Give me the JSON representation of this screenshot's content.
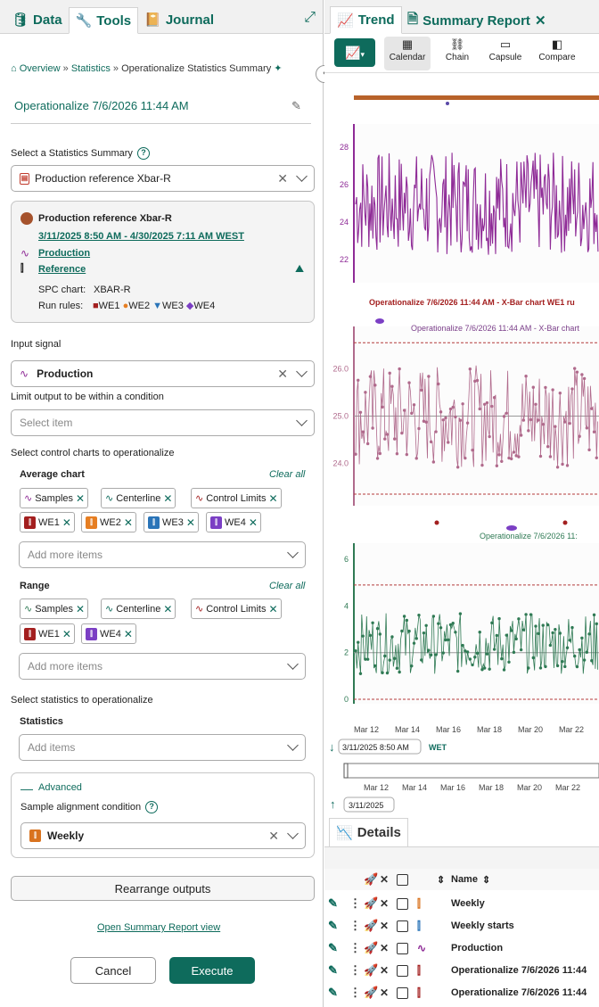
{
  "left_tabs": {
    "data": "Data",
    "tools": "Tools",
    "journal": "Journal"
  },
  "right_tabs": {
    "trend": "Trend",
    "summary": "Summary Report"
  },
  "breadcrumb": {
    "overview": "Overview",
    "sep": "»",
    "statistics": "Statistics",
    "current": "Operationalize Statistics Summary"
  },
  "page_title": "Operationalize 7/6/2026 11:44 AM",
  "summary_section": {
    "label": "Select a Statistics Summary",
    "value": "Production reference Xbar-R"
  },
  "card": {
    "title": "Production reference Xbar-R",
    "range": "3/11/2025 8:50 AM - 4/30/2025 7:11 AM WEST",
    "signal": "Production",
    "condition": "Reference",
    "spc_label": "SPC chart:",
    "spc_value": "XBAR-R",
    "rules_label": "Run rules:",
    "rules": [
      {
        "name": "WE1",
        "color": "#a31f1f",
        "glyph": "■"
      },
      {
        "name": "WE2",
        "color": "#e67e22",
        "glyph": "●"
      },
      {
        "name": "WE3",
        "color": "#2a74b8",
        "glyph": "▼"
      },
      {
        "name": "WE4",
        "color": "#7b3fc4",
        "glyph": "◆"
      }
    ]
  },
  "input_signal": {
    "label": "Input signal",
    "value": "Production"
  },
  "limit_output": {
    "label": "Limit output to be within a condition",
    "placeholder": "Select item"
  },
  "control_charts": {
    "label": "Select control charts to operationalize",
    "average_label": "Average chart",
    "range_label": "Range",
    "clear_all": "Clear all",
    "average_chips": [
      "Samples",
      "Centerline",
      "Control Limits",
      "WE1",
      "WE2",
      "WE3",
      "WE4"
    ],
    "range_chips": [
      "Samples",
      "Centerline",
      "Control Limits",
      "WE1",
      "WE4"
    ],
    "add_more": "Add more items"
  },
  "statistics": {
    "label": "Select statistics to operationalize",
    "sub_label": "Statistics",
    "placeholder": "Add items"
  },
  "advanced": {
    "label": "Advanced",
    "alignment_label": "Sample alignment condition",
    "alignment_value": "Weekly"
  },
  "buttons": {
    "rearrange": "Rearrange outputs",
    "open_report": "Open Summary Report view",
    "cancel": "Cancel",
    "execute": "Execute"
  },
  "toolbar": {
    "calendar": "Calendar",
    "chain": "Chain",
    "capsule": "Capsule",
    "compare": "Compare"
  },
  "chart_data": [
    {
      "type": "line",
      "title": "",
      "ylim": [
        21,
        29
      ],
      "yticks": [
        22,
        24,
        26,
        28
      ],
      "series": [
        {
          "color": "#8e2a96"
        }
      ]
    },
    {
      "type": "line",
      "title": "Operationalize 7/6/2026 11:44 AM - X-Bar chart",
      "subtitle": "Operationalize 7/6/2026 11:44 AM - X-Bar chart WE1 ru",
      "ylim": [
        23.2,
        26.8
      ],
      "yticks": [
        24.0,
        25.0,
        26.0
      ],
      "control_limits": [
        23.35,
        26.55
      ],
      "centerline": 25.0,
      "series": [
        {
          "color": "#b06a8c"
        }
      ]
    },
    {
      "type": "line",
      "title": "Operationalize 7/6/2026 11:",
      "ylim": [
        0,
        6.5
      ],
      "yticks": [
        0,
        2,
        4,
        6
      ],
      "control_limits": [
        0,
        4.9
      ],
      "centerline": 2.0,
      "series": [
        {
          "color": "#2f7a54"
        }
      ]
    }
  ],
  "x_axis": {
    "ticks": [
      "Mar 12",
      "Mar 14",
      "Mar 16",
      "Mar 18",
      "Mar 20",
      "Mar 22"
    ]
  },
  "time_start": "3/11/2025 8:50 AM",
  "time_zone": "WET",
  "navigator_start": "3/11/2025",
  "details": {
    "tab": "Details",
    "col_name": "Name",
    "rows": [
      "Weekly",
      "Weekly starts",
      "Production",
      "Operationalize 7/6/2026 11:44",
      "Operationalize 7/6/2026 11:44"
    ]
  }
}
